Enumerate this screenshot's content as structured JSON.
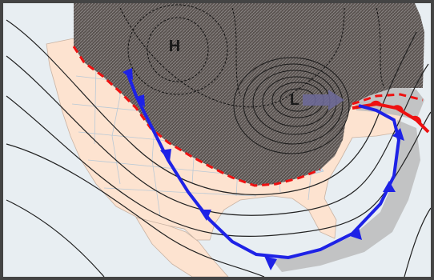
{
  "map": {
    "high_label": "H",
    "low_label": "L",
    "colors": {
      "frame": "#444444",
      "ocean": "#e8eef2",
      "land": "#fde3d0",
      "state_lines": "#b9c9d6",
      "cold_air_mass": "#5a5350",
      "isobar": "#222222",
      "cold_front": "#1e22e6",
      "warm_front": "#ee1111",
      "precip_shadow": "#b8b8b8"
    },
    "features": [
      "high-pressure-center",
      "low-pressure-center",
      "cold-front",
      "warm-front",
      "arctic-air-mass",
      "isobars"
    ]
  }
}
